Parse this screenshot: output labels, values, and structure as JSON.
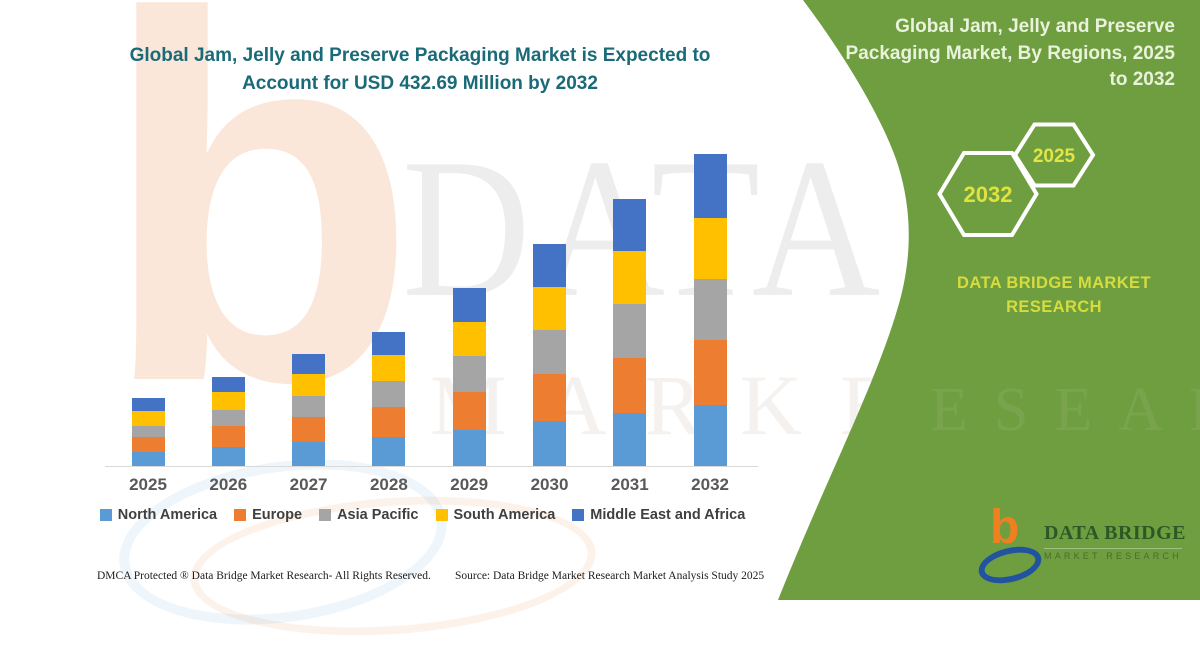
{
  "left_section": {
    "title_line1": "Global Jam, Jelly and Preserve Packaging Market is Expected to",
    "title_line2": "Account for USD 432.69 Million by 2032",
    "title_color": "#1a6a78",
    "footer_left": "DMCA Protected ® Data Bridge Market Research-  All Rights Reserved.",
    "footer_right": "Source: Data Bridge Market Research  Market Analysis Study 2025",
    "watermark_letter": "b",
    "watermark_line1": "DATA BRIDGE",
    "watermark_line2": "MARKET RESEARCH"
  },
  "chart_data": {
    "type": "bar",
    "stacked": true,
    "title": "Global Jam, Jelly and Preserve Packaging Market is Expected to Account for USD 432.69 Million by 2032",
    "unit": "USD Million",
    "categories": [
      "2025",
      "2026",
      "2027",
      "2028",
      "2029",
      "2030",
      "2031",
      "2032"
    ],
    "series": [
      {
        "name": "North America",
        "color": "#5b9bd5",
        "values": [
          20,
          27,
          33,
          40,
          50,
          62,
          73,
          84
        ]
      },
      {
        "name": "Europe",
        "color": "#ed7d31",
        "values": [
          21,
          28,
          35,
          42,
          52,
          65,
          77,
          91
        ]
      },
      {
        "name": "Asia Pacific",
        "color": "#a5a5a5",
        "values": [
          15,
          22,
          29,
          36,
          50,
          62,
          75,
          85
        ]
      },
      {
        "name": "South America",
        "color": "#ffc000",
        "values": [
          21,
          26,
          31,
          36,
          48,
          59,
          73,
          84
        ]
      },
      {
        "name": "Middle East and Africa",
        "color": "#4472c4",
        "values": [
          17,
          21,
          27,
          32,
          47,
          60,
          72,
          88
        ]
      }
    ],
    "totals_estimated": [
      94,
      124,
      155,
      186,
      247,
      308,
      370,
      432.69
    ],
    "ylim": [
      0,
      450
    ],
    "grid": false,
    "y_axis_visible": false,
    "legend_position": "bottom"
  },
  "right_panel": {
    "background_color": "#6f9e40",
    "title": "Global Jam, Jelly and Preserve Packaging Market, By Regions, 2025 to 2032",
    "hexagon_back_label": "2032",
    "hexagon_front_label": "2025",
    "hexagon_label_color": "#dfe23f",
    "brand_heading": "DATA BRIDGE MARKET RESEARCH",
    "logo": {
      "wordmark": "DATA BRIDGE",
      "tagline": "MARKET RESEARCH"
    }
  }
}
